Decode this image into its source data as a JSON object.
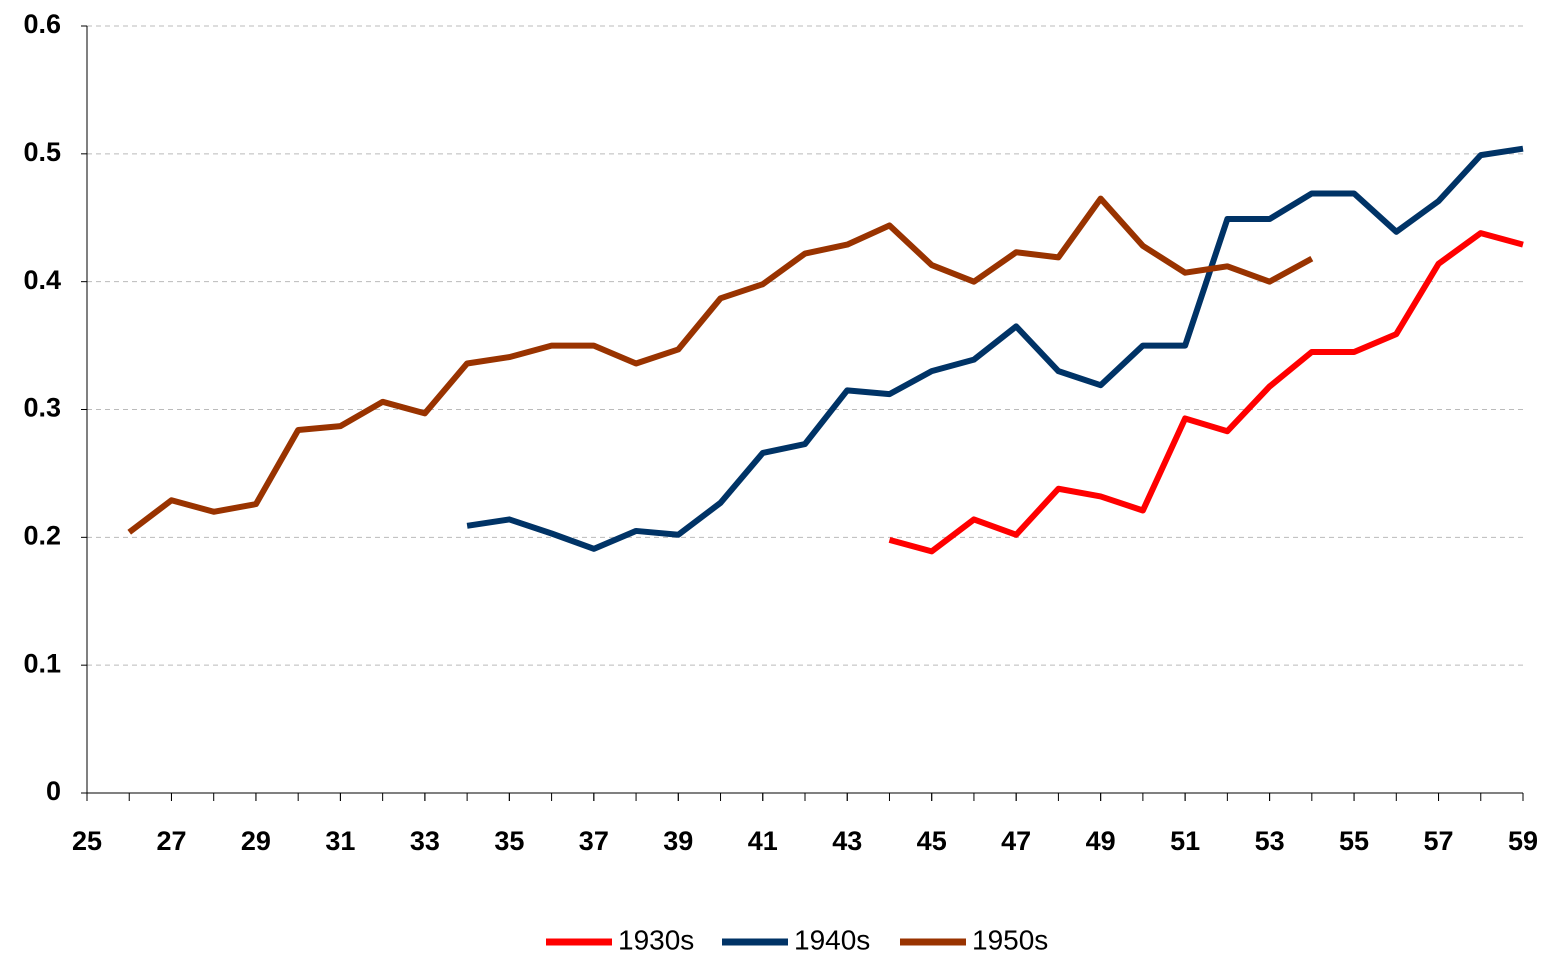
{
  "chart_data": {
    "type": "line",
    "x": [
      25,
      26,
      27,
      28,
      29,
      30,
      31,
      32,
      33,
      34,
      35,
      36,
      37,
      38,
      39,
      40,
      41,
      42,
      43,
      44,
      45,
      46,
      47,
      48,
      49,
      50,
      51,
      52,
      53,
      54,
      55,
      56,
      57,
      58,
      59
    ],
    "series": [
      {
        "name": "1930s",
        "color": "#ff0000",
        "values": [
          null,
          null,
          null,
          null,
          null,
          null,
          null,
          null,
          null,
          null,
          null,
          null,
          null,
          null,
          null,
          null,
          null,
          null,
          null,
          0.198,
          0.189,
          0.214,
          0.202,
          0.238,
          0.232,
          0.221,
          0.293,
          0.283,
          0.318,
          0.345,
          0.345,
          0.359,
          0.414,
          0.438,
          0.429
        ]
      },
      {
        "name": "1940s",
        "color": "#003366",
        "values": [
          null,
          null,
          null,
          null,
          null,
          null,
          null,
          null,
          null,
          0.209,
          0.214,
          0.203,
          0.191,
          0.205,
          0.202,
          0.227,
          0.266,
          0.273,
          0.315,
          0.312,
          0.33,
          0.339,
          0.365,
          0.33,
          0.319,
          0.35,
          0.35,
          0.449,
          0.449,
          0.469,
          0.469,
          0.439,
          0.463,
          0.499,
          0.504
        ]
      },
      {
        "name": "1950s",
        "color": "#993300",
        "values": [
          null,
          0.204,
          0.229,
          0.22,
          0.226,
          0.284,
          0.287,
          0.306,
          0.297,
          0.336,
          0.341,
          0.35,
          0.35,
          0.336,
          0.347,
          0.387,
          0.398,
          0.422,
          0.429,
          0.444,
          0.413,
          0.4,
          0.423,
          0.419,
          0.465,
          0.428,
          0.407,
          0.412,
          0.4,
          0.418,
          null,
          null,
          null,
          null,
          null
        ]
      }
    ],
    "xlim": [
      25,
      59
    ],
    "xticks": [
      25,
      27,
      29,
      31,
      33,
      35,
      37,
      39,
      41,
      43,
      45,
      47,
      49,
      51,
      53,
      55,
      57,
      59
    ],
    "ylim": [
      0,
      0.6
    ],
    "yticks": [
      0,
      0.1,
      0.2,
      0.3,
      0.4,
      0.5,
      0.6
    ],
    "grid": true,
    "legend": "bottom"
  }
}
